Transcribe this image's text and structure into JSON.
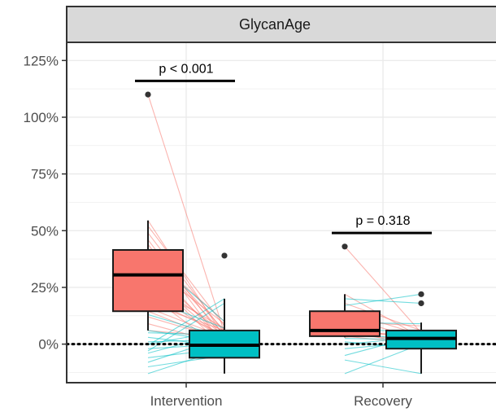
{
  "chart_data": {
    "type": "box",
    "facet_title": "GlycanAge",
    "categories": [
      "Intervention",
      "Recovery"
    ],
    "y_ticks": [
      "0%",
      "25%",
      "50%",
      "75%",
      "100%",
      "125%"
    ],
    "y_tick_values": [
      0,
      25,
      50,
      75,
      100,
      125
    ],
    "ylim": [
      -17,
      133
    ],
    "reference_line_y": 0,
    "grid": true,
    "colors": {
      "red": "#f8766d",
      "teal": "#00bfc4",
      "panel_border": "#333333",
      "strip": "#d9d9d9",
      "grid": "#ebebeb"
    },
    "boxes": [
      {
        "category": "Intervention",
        "side": "left",
        "color": "red",
        "whisker_low": 6,
        "q1": 14.5,
        "median": 30.5,
        "q3": 41.5,
        "whisker_high": 54.5,
        "outliers": [
          110
        ]
      },
      {
        "category": "Intervention",
        "side": "right",
        "color": "teal",
        "whisker_low": -13,
        "q1": -6,
        "median": -0.5,
        "q3": 6,
        "whisker_high": 20,
        "outliers": [
          39
        ]
      },
      {
        "category": "Recovery",
        "side": "left",
        "color": "red",
        "whisker_low": 3,
        "q1": 3.5,
        "median": 6,
        "q3": 14.5,
        "whisker_high": 22,
        "outliers": [
          43
        ]
      },
      {
        "category": "Recovery",
        "side": "right",
        "color": "teal",
        "whisker_low": -13,
        "q1": -2,
        "median": 2.5,
        "q3": 6,
        "whisker_high": 9.5,
        "outliers": [
          18,
          22
        ]
      }
    ],
    "paired_lines": [
      {
        "category": "Intervention",
        "pairs": [
          [
            110,
            5
          ],
          [
            54.5,
            3
          ],
          [
            52,
            8
          ],
          [
            49,
            5
          ],
          [
            46,
            2
          ],
          [
            44,
            -1
          ],
          [
            42,
            6
          ],
          [
            41.5,
            4
          ],
          [
            40,
            10
          ],
          [
            37,
            0
          ],
          [
            35,
            9
          ],
          [
            33,
            3
          ],
          [
            31,
            -2
          ],
          [
            30.5,
            1
          ],
          [
            29,
            5
          ],
          [
            26,
            7
          ],
          [
            24,
            2
          ],
          [
            22,
            -3
          ],
          [
            20,
            4
          ],
          [
            18,
            6
          ],
          [
            16,
            3
          ],
          [
            14.5,
            1
          ],
          [
            12,
            2
          ],
          [
            9,
            0
          ],
          [
            6,
            3
          ]
        ]
      },
      {
        "category": "Intervention",
        "pairs": [
          [
            39,
            10
          ],
          [
            20,
            7
          ],
          [
            13,
            3
          ],
          [
            6,
            1
          ],
          [
            5,
            4
          ],
          [
            3,
            -1
          ],
          [
            1,
            2
          ],
          [
            0,
            6
          ],
          [
            -0.5,
            20
          ],
          [
            -2,
            0
          ],
          [
            -4,
            5
          ],
          [
            -6,
            -2
          ],
          [
            -8,
            3
          ],
          [
            -10,
            -5
          ],
          [
            -13,
            -2
          ],
          [
            -3,
            18
          ]
        ]
      },
      {
        "category": "Recovery",
        "pairs": [
          [
            43,
            5
          ],
          [
            22,
            3
          ],
          [
            18,
            6
          ],
          [
            14.5,
            4
          ],
          [
            12,
            2
          ],
          [
            10,
            8
          ],
          [
            8,
            1
          ],
          [
            6,
            3
          ],
          [
            6,
            -1
          ],
          [
            5,
            4
          ],
          [
            4,
            2
          ],
          [
            3.5,
            0
          ],
          [
            3,
            6
          ]
        ]
      },
      {
        "category": "Recovery",
        "pairs": [
          [
            20,
            18
          ],
          [
            17,
            22
          ],
          [
            9.5,
            9
          ],
          [
            6,
            6
          ],
          [
            4,
            2.5
          ],
          [
            2.5,
            2
          ],
          [
            1,
            -2
          ],
          [
            0,
            3
          ],
          [
            -2,
            1
          ],
          [
            -5,
            4
          ],
          [
            -7,
            -13
          ],
          [
            -13,
            0
          ]
        ]
      }
    ],
    "brackets": [
      {
        "category": "Intervention",
        "label": "p < 0.001",
        "y": 116
      },
      {
        "category": "Recovery",
        "label": "p = 0.318",
        "y": 49
      }
    ]
  }
}
